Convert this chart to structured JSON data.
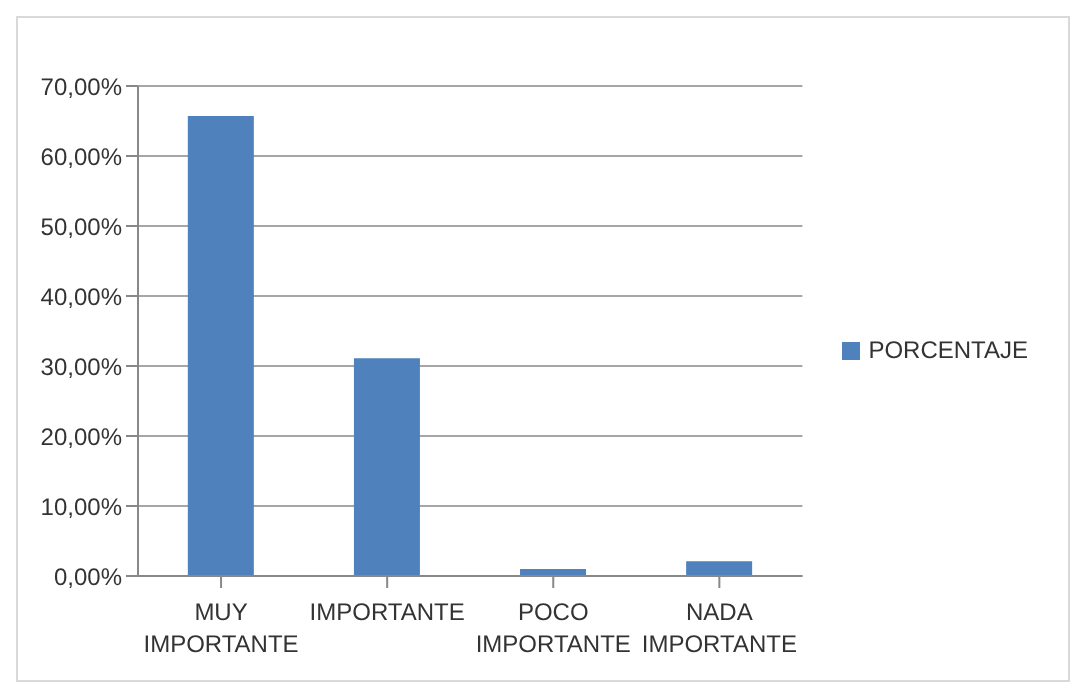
{
  "chart_data": {
    "type": "bar",
    "categories": [
      "MUY IMPORTANTE",
      "IMPORTANTE",
      "POCO IMPORTANTE",
      "NADA IMPORTANTE"
    ],
    "series": [
      {
        "name": "PORCENTAJE",
        "color": "#4f81bd",
        "values": [
          65.7,
          31.1,
          1.0,
          2.1
        ]
      }
    ],
    "ylim": [
      0,
      70
    ],
    "yticks": [
      {
        "value": 0,
        "label": "0,00%"
      },
      {
        "value": 10,
        "label": "10,00%"
      },
      {
        "value": 20,
        "label": "20,00%"
      },
      {
        "value": 30,
        "label": "30,00%"
      },
      {
        "value": 40,
        "label": "40,00%"
      },
      {
        "value": 50,
        "label": "50,00%"
      },
      {
        "value": 60,
        "label": "60,00%"
      },
      {
        "value": 70,
        "label": "70,00%"
      }
    ],
    "grid": "y",
    "legend": "right"
  }
}
